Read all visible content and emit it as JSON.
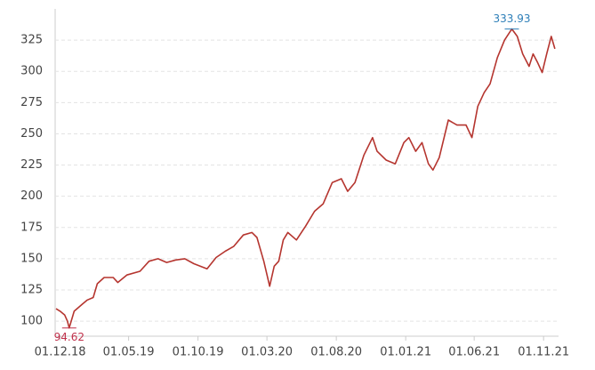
{
  "chart_data": {
    "type": "line",
    "x": [
      "2018-11-22",
      "2018-12-01",
      "2018-12-11",
      "2018-12-17",
      "2018-12-21",
      "2019-01-01",
      "2019-01-20",
      "2019-01-30",
      "2019-02-12",
      "2019-02-21",
      "2019-03-08",
      "2019-03-28",
      "2019-04-07",
      "2019-04-27",
      "2019-05-26",
      "2019-06-15",
      "2019-07-05",
      "2019-07-24",
      "2019-08-13",
      "2019-09-02",
      "2019-09-22",
      "2019-10-21",
      "2019-11-10",
      "2019-11-30",
      "2019-12-19",
      "2020-01-09",
      "2020-01-28",
      "2020-02-08",
      "2020-02-23",
      "2020-03-07",
      "2020-03-17",
      "2020-03-27",
      "2020-04-06",
      "2020-04-16",
      "2020-05-05",
      "2020-05-25",
      "2020-06-14",
      "2020-07-03",
      "2020-07-23",
      "2020-08-12",
      "2020-08-26",
      "2020-09-11",
      "2020-10-01",
      "2020-10-20",
      "2020-10-30",
      "2020-11-19",
      "2020-12-09",
      "2020-12-28",
      "2021-01-08",
      "2021-01-23",
      "2021-02-06",
      "2021-02-20",
      "2021-03-02",
      "2021-03-16",
      "2021-04-05",
      "2021-04-24",
      "2021-05-14",
      "2021-05-27",
      "2021-06-09",
      "2021-06-23",
      "2021-07-06",
      "2021-07-22",
      "2021-08-07",
      "2021-08-23",
      "2021-09-04",
      "2021-09-16",
      "2021-09-30",
      "2021-10-09",
      "2021-10-19",
      "2021-10-29",
      "2021-11-08",
      "2021-11-18",
      "2021-11-26"
    ],
    "series": [
      {
        "color": "#b5352f",
        "values": [
          110,
          108,
          105,
          100,
          94.62,
          108,
          114,
          117,
          119,
          130,
          135,
          135,
          131,
          137,
          140,
          148,
          150,
          147,
          149,
          150,
          146,
          142,
          151,
          156,
          160,
          169,
          171,
          167,
          148,
          128,
          144,
          148,
          165,
          171,
          165,
          176,
          188,
          194,
          211,
          214,
          204,
          211,
          233,
          247,
          236,
          229,
          226,
          243,
          247,
          236,
          243,
          226,
          221,
          231,
          261,
          257,
          257,
          247,
          272,
          283,
          290,
          311,
          325,
          333.93,
          328,
          314,
          304,
          314,
          307,
          299,
          314,
          328,
          318
        ]
      }
    ],
    "xlim": [
      "2018-11-20",
      "2021-12-04"
    ],
    "xticks": [
      {
        "value": "2018-12-01",
        "label": "01.12.18"
      },
      {
        "value": "2019-05-01",
        "label": "01.05.19"
      },
      {
        "value": "2019-10-01",
        "label": "01.10.19"
      },
      {
        "value": "2020-03-01",
        "label": "01.03.20"
      },
      {
        "value": "2020-08-01",
        "label": "01.08.20"
      },
      {
        "value": "2021-01-01",
        "label": "01.01.21"
      },
      {
        "value": "2021-06-01",
        "label": "01.06.21"
      },
      {
        "value": "2021-11-01",
        "label": "01.11.21"
      }
    ],
    "ylim": [
      88,
      350
    ],
    "yticks": [
      100,
      125,
      150,
      175,
      200,
      225,
      250,
      275,
      300,
      325
    ],
    "grid": true,
    "annotations": [
      {
        "x": "2018-12-21",
        "value": 94.62,
        "color": "#c0304a"
      },
      {
        "x": "2021-08-23",
        "value": 333.93,
        "color": "#2e7fb8"
      }
    ]
  }
}
